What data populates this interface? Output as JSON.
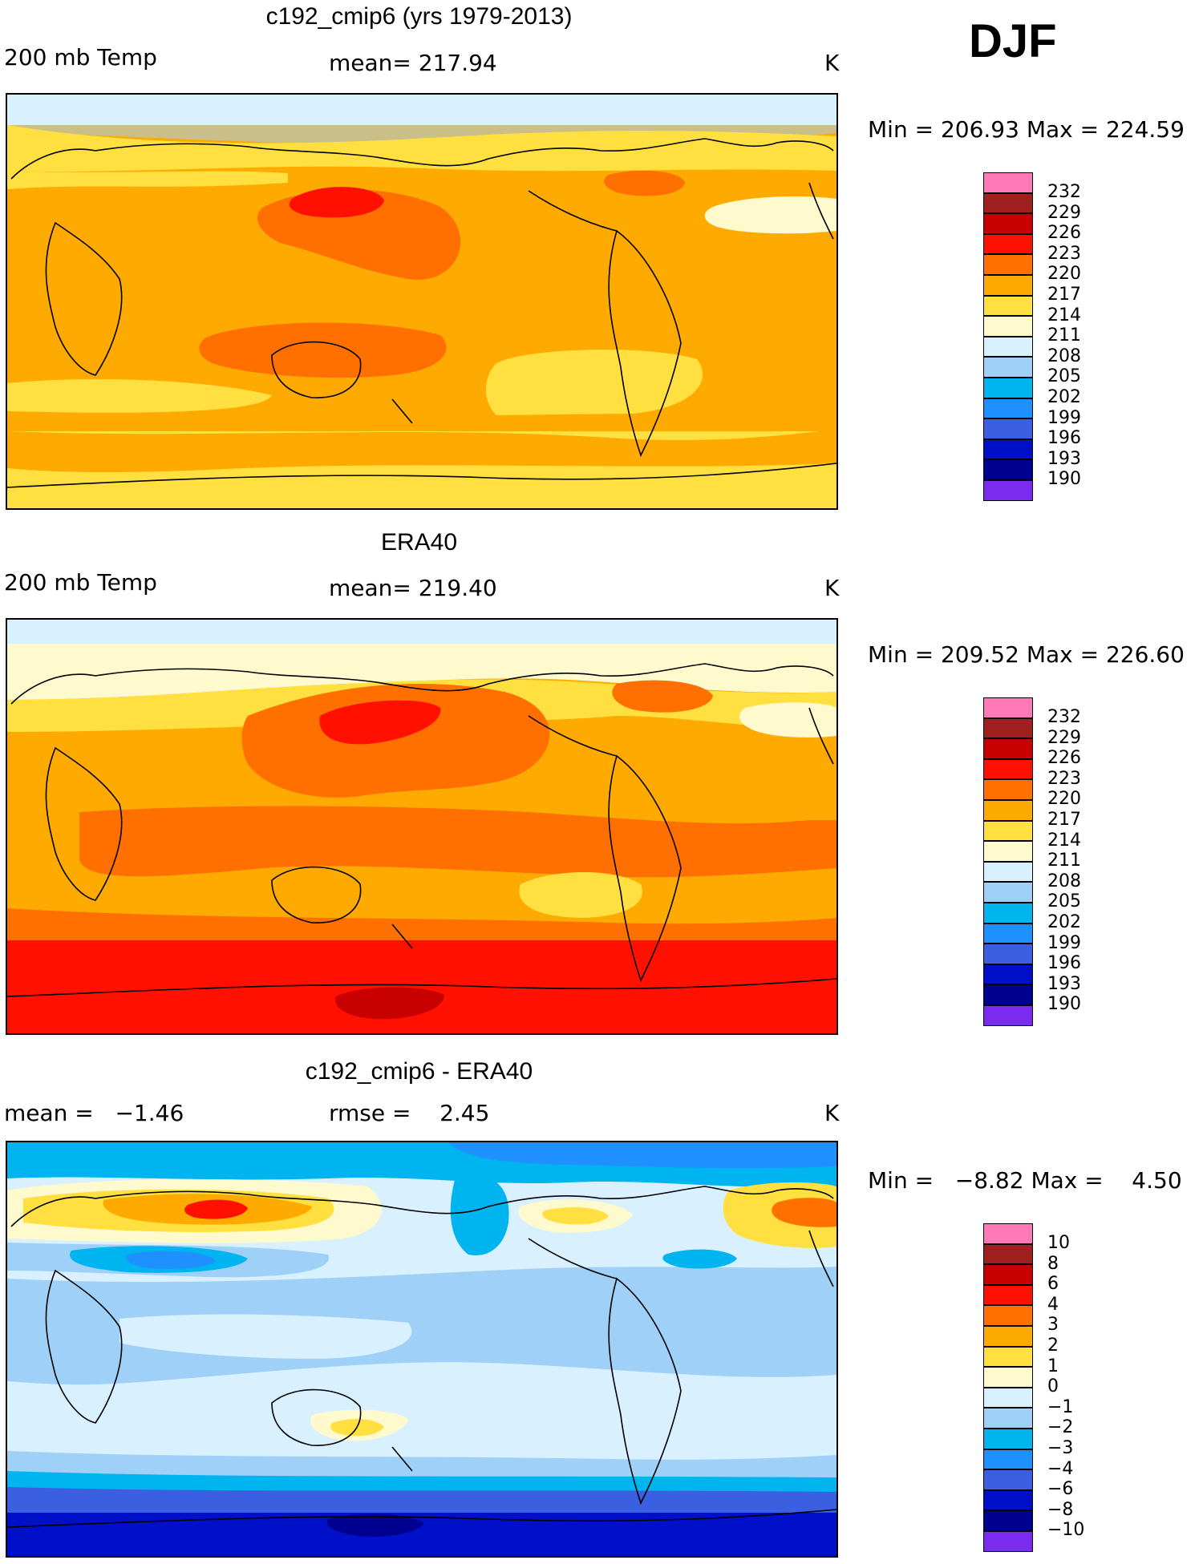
{
  "season": "DJF",
  "colors": {
    "temp_palette": [
      "#7b2bf0",
      "#000090",
      "#0010c8",
      "#3a5fe0",
      "#1e90ff",
      "#00b4f0",
      "#9fd0f8",
      "#d8f0ff",
      "#fffacd",
      "#ffe040",
      "#ffaa00",
      "#ff7000",
      "#ff1000",
      "#c80000",
      "#a02020",
      "#ff78b8"
    ],
    "continent_outline": "#000000"
  },
  "panels": [
    {
      "title": "c192_cmip6 (yrs 1979-2013)",
      "left": "200 mb Temp",
      "center": "mean= 217.94",
      "right": "K",
      "minmax": "Min = 206.93 Max = 224.59",
      "colorbar_labels": [
        "232",
        "229",
        "226",
        "223",
        "220",
        "217",
        "214",
        "211",
        "208",
        "205",
        "202",
        "199",
        "196",
        "193",
        "190"
      ]
    },
    {
      "title": "ERA40",
      "left": "200 mb Temp",
      "center": "mean= 219.40",
      "right": "K",
      "minmax": "Min = 209.52 Max = 226.60",
      "colorbar_labels": [
        "232",
        "229",
        "226",
        "223",
        "220",
        "217",
        "214",
        "211",
        "208",
        "205",
        "202",
        "199",
        "196",
        "193",
        "190"
      ]
    },
    {
      "title": "c192_cmip6 - ERA40",
      "left": "mean =   −1.46",
      "center": "rmse =    2.45",
      "right": "K",
      "minmax": "Min =   −8.82 Max =    4.50",
      "colorbar_labels": [
        "10",
        "8",
        "6",
        "4",
        "3",
        "2",
        "1",
        "0",
        "−1",
        "−2",
        "−3",
        "−4",
        "−6",
        "−8",
        "−10"
      ]
    }
  ],
  "chart_data": [
    {
      "type": "heatmap",
      "title": "c192_cmip6 (yrs 1979-2013)",
      "variable": "200 mb Temp",
      "units": "K",
      "mean": 217.94,
      "min": 206.93,
      "max": 224.59,
      "contour_levels": [
        190,
        193,
        196,
        199,
        202,
        205,
        208,
        211,
        214,
        217,
        220,
        223,
        226,
        229,
        232
      ]
    },
    {
      "type": "heatmap",
      "title": "ERA40",
      "variable": "200 mb Temp",
      "units": "K",
      "mean": 219.4,
      "min": 209.52,
      "max": 226.6,
      "contour_levels": [
        190,
        193,
        196,
        199,
        202,
        205,
        208,
        211,
        214,
        217,
        220,
        223,
        226,
        229,
        232
      ]
    },
    {
      "type": "heatmap",
      "title": "c192_cmip6 - ERA40",
      "units": "K",
      "mean": -1.46,
      "rmse": 2.45,
      "min": -8.82,
      "max": 4.5,
      "contour_levels": [
        -10,
        -8,
        -6,
        -4,
        -3,
        -2,
        -1,
        0,
        1,
        2,
        3,
        4,
        6,
        8,
        10
      ]
    }
  ]
}
